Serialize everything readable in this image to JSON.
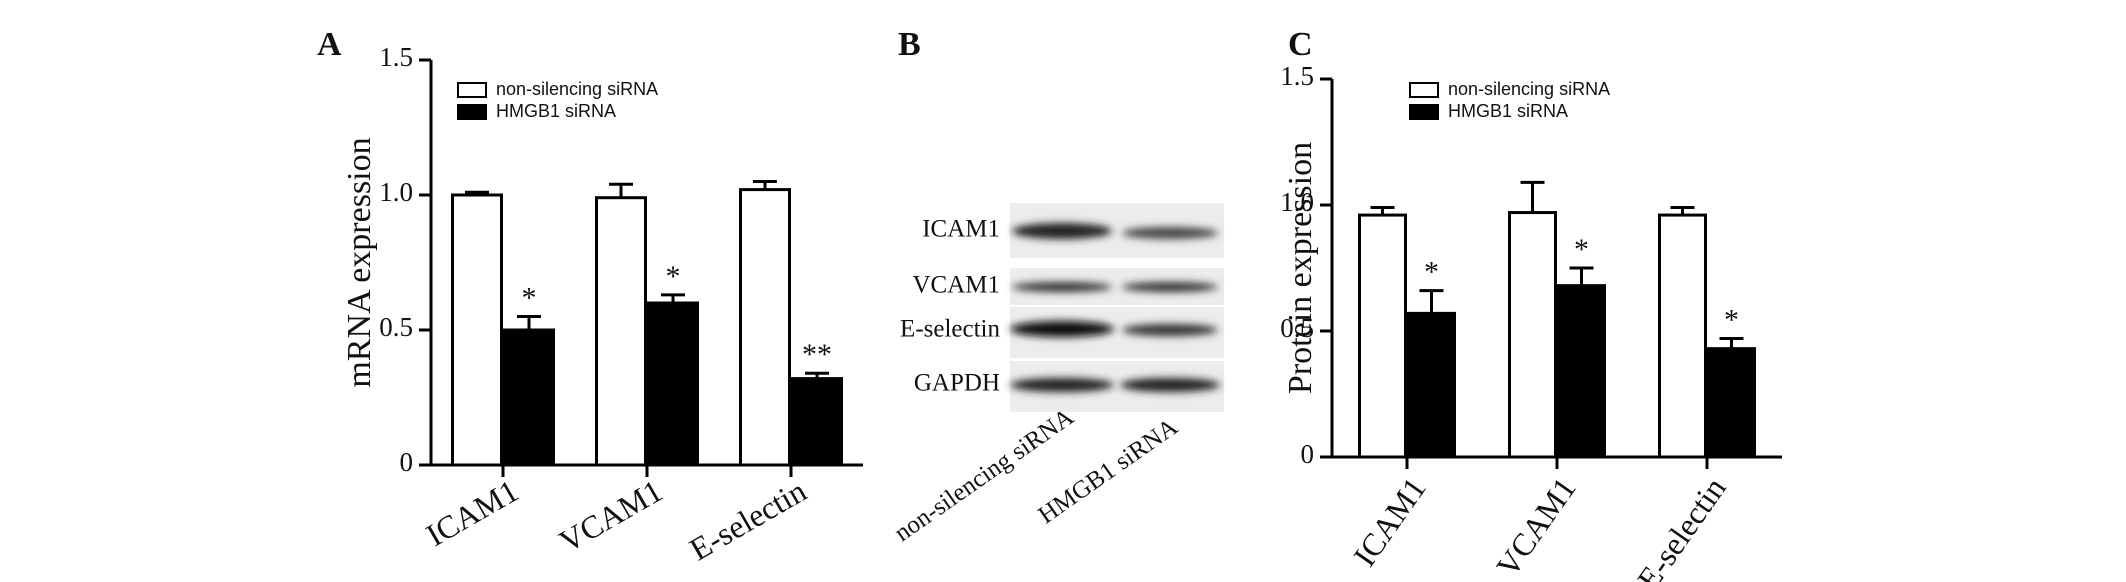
{
  "chart_data": [
    {
      "type": "bar",
      "panel": "A",
      "y_label": "mRNA expression",
      "categories": [
        "ICAM1",
        "VCAM1",
        "E-selectin"
      ],
      "series": [
        {
          "name": "non-silencing siRNA",
          "color": "#ffffff",
          "values": [
            1.0,
            0.99,
            1.02
          ],
          "errors": [
            0.01,
            0.05,
            0.03
          ]
        },
        {
          "name": "HMGB1 siRNA",
          "color": "#000000",
          "values": [
            0.5,
            0.6,
            0.32
          ],
          "errors": [
            0.05,
            0.03,
            0.02
          ],
          "significance": [
            "*",
            "*",
            "**"
          ]
        }
      ],
      "ylim": [
        0,
        1.5
      ],
      "yticks": [
        0,
        0.5,
        {
          "value": 1.0,
          "label": "1.0"
        },
        1.5
      ],
      "legend": "upper left"
    },
    {
      "type": "bar",
      "panel": "C",
      "y_label": "Protein expression",
      "categories": [
        "ICAM1",
        "VCAM1",
        "E-selectin"
      ],
      "series": [
        {
          "name": "non-silencing siRNA",
          "color": "#ffffff",
          "values": [
            0.96,
            0.97,
            0.96
          ],
          "errors": [
            0.03,
            0.12,
            0.03
          ]
        },
        {
          "name": "HMGB1 siRNA",
          "color": "#000000",
          "values": [
            0.57,
            0.68,
            0.43
          ],
          "errors": [
            0.09,
            0.07,
            0.04
          ],
          "significance": [
            "*",
            "*",
            "*"
          ]
        }
      ],
      "ylim": [
        0,
        1.5
      ],
      "yticks": [
        0,
        0.5,
        {
          "value": 1.0,
          "label": "1.0"
        },
        1.5
      ],
      "legend": "upper left"
    }
  ],
  "blot": {
    "panel": "B",
    "rows": [
      "ICAM1",
      "VCAM1",
      "E-selectin",
      "GAPDH"
    ],
    "lanes": [
      "non-silencing siRNA",
      "HMGB1 siRNA"
    ]
  }
}
